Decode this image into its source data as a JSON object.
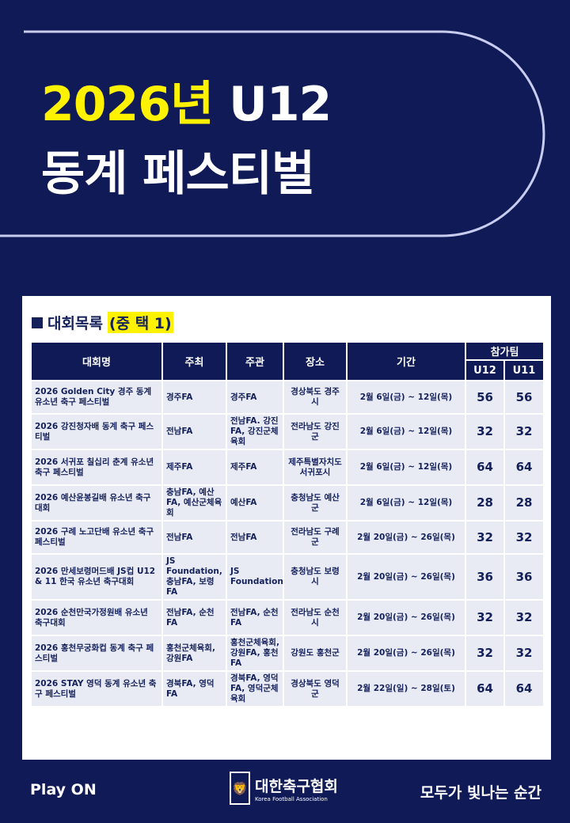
{
  "header": {
    "title_year": "2026년",
    "title_rest": " U12",
    "title_line2": "동계 페스티벌"
  },
  "section": {
    "label": "대회목록",
    "highlight": "(중 택 1)"
  },
  "table": {
    "headers": {
      "name": "대회명",
      "host": "주최",
      "organizer": "주관",
      "venue": "장소",
      "period": "기간",
      "teams": "참가팀",
      "u12": "U12",
      "u11": "U11"
    },
    "rows": [
      {
        "name": "2026 Golden City 경주 동계 유소년 축구 페스티벌",
        "host": "경주FA",
        "organizer": "경주FA",
        "venue": "경상북도 경주시",
        "period": "2월 6일(금) ~ 12일(목)",
        "u12": "56",
        "u11": "56"
      },
      {
        "name": "2026 강진청자배 동계 축구 페스티벌",
        "host": "전남FA",
        "organizer": "전남FA. 강진FA, 강진군체육회",
        "venue": "전라남도 강진군",
        "period": "2월 6일(금) ~ 12일(목)",
        "u12": "32",
        "u11": "32"
      },
      {
        "name": "2026 서귀포 칠십리 춘계 유소년 축구 페스티벌",
        "host": "제주FA",
        "organizer": "제주FA",
        "venue": "제주특별자치도 서귀포시",
        "period": "2월 6일(금) ~ 12일(목)",
        "u12": "64",
        "u11": "64"
      },
      {
        "name": "2026 예산윤봉길배 유소년 축구대회",
        "host": "충남FA, 예산FA, 예산군체육회",
        "organizer": "예산FA",
        "venue": "충청남도 예산군",
        "period": "2월 6일(금) ~ 12일(목)",
        "u12": "28",
        "u11": "28"
      },
      {
        "name": "2026 구례 노고단배 유소년 축구 페스티벌",
        "host": "전남FA",
        "organizer": "전남FA",
        "venue": "전라남도 구례군",
        "period": "2월 20일(금) ~ 26일(목)",
        "u12": "32",
        "u11": "32"
      },
      {
        "name": "2026 만세보령머드배 JS컵 U12 & 11 한국 유소년 축구대회",
        "host": "JS Foundation, 충남FA, 보령FA",
        "organizer": "JS Foundation",
        "venue": "충청남도 보령시",
        "period": "2월 20일(금) ~ 26일(목)",
        "u12": "36",
        "u11": "36"
      },
      {
        "name": "2026 순천만국가정원배 유소년 축구대회",
        "host": "전남FA, 순천FA",
        "organizer": "전남FA, 순천FA",
        "venue": "전라남도 순천시",
        "period": "2월 20일(금) ~ 26일(목)",
        "u12": "32",
        "u11": "32"
      },
      {
        "name": "2026 홍천무궁화컵 동계 축구 페스티벌",
        "host": "홍천군체육회, 강원FA",
        "organizer": "홍천군체육회, 강원FA, 홍천FA",
        "venue": "강원도 홍천군",
        "period": "2월 20일(금) ~ 26일(목)",
        "u12": "32",
        "u11": "32"
      },
      {
        "name": "2026 STAY 영덕 동계 유소년 축구 페스티벌",
        "host": "경북FA, 영덕FA",
        "organizer": "경북FA, 영덕FA, 영덕군체육회",
        "venue": "경상북도 영덕군",
        "period": "2월 22일(일) ~ 28일(토)",
        "u12": "64",
        "u11": "64"
      }
    ]
  },
  "footer": {
    "left": "Play ON",
    "logo_ko": "대한축구협회",
    "logo_en": "Korea Football Association",
    "right": "모두가 빛나는 순간"
  },
  "colors": {
    "navy": "#0f1a57",
    "highlight": "#fff200",
    "cell": "#e8eaf4"
  }
}
